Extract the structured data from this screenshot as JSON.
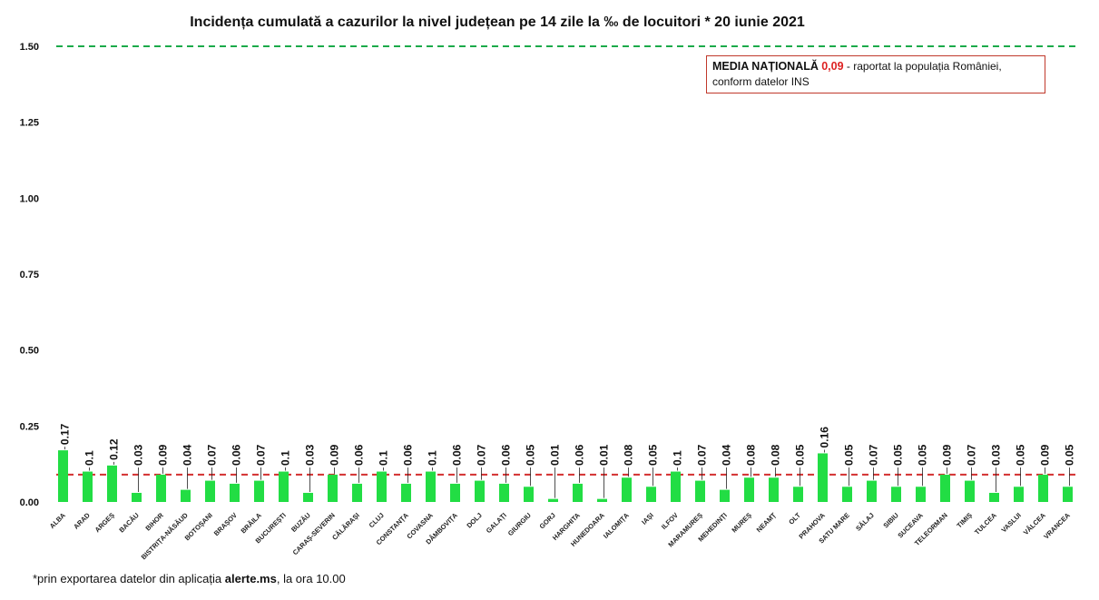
{
  "title": "Incidența cumulată a cazurilor la nivel județean pe 14 zile la ‰ de locuitori *  20 iunie 2021",
  "legend": {
    "label": "MEDIA NAȚIONALĂ",
    "value": "0,09",
    "text1": " - raportat la populația României,",
    "text2": "conform datelor INS"
  },
  "footnote": {
    "prefix": "*prin exportarea datelor din aplicația ",
    "bold": "alerte.ms",
    "suffix": ", la ora 10.00"
  },
  "colors": {
    "bar": "#22dd44",
    "national_line": "#d32f2f",
    "threshold_line": "#1aaa4a"
  },
  "chart_data": {
    "type": "bar",
    "title": "Incidența cumulată a cazurilor la nivel județean pe 14 zile la ‰ de locuitori *  20 iunie 2021",
    "ylim": [
      0,
      1.5
    ],
    "yticks": [
      "0.00",
      "0.25",
      "0.50",
      "0.75",
      "1.00",
      "1.25",
      "1.50"
    ],
    "grid": false,
    "reference_lines": [
      {
        "value": 1.5,
        "style": "dashed",
        "color": "#1aaa4a"
      },
      {
        "value": 0.09,
        "style": "dashed",
        "color": "#d32f2f"
      }
    ],
    "categories": [
      "ALBA",
      "ARAD",
      "ARGEȘ",
      "BACĂU",
      "BIHOR",
      "BISTRIȚA-NĂSĂUD",
      "BOTOȘANI",
      "BRAȘOV",
      "BRĂILA",
      "BUCUREȘTI",
      "BUZĂU",
      "CARAȘ-SEVERIN",
      "CĂLĂRAȘI",
      "CLUJ",
      "CONSTANȚA",
      "COVASNA",
      "DÂMBOVIȚA",
      "DOLJ",
      "GALAȚI",
      "GIURGIU",
      "GORJ",
      "HARGHITA",
      "HUNEDOARA",
      "IALOMIȚA",
      "IAȘI",
      "ILFOV",
      "MARAMUREȘ",
      "MEHEDINȚI",
      "MUREȘ",
      "NEAMȚ",
      "OLT",
      "PRAHOVA",
      "SATU MARE",
      "SĂLAJ",
      "SIBIU",
      "SUCEAVA",
      "TELEORMAN",
      "TIMIȘ",
      "TULCEA",
      "VASLUI",
      "VÂLCEA",
      "VRANCEA"
    ],
    "values": [
      0.17,
      0.1,
      0.12,
      0.03,
      0.09,
      0.04,
      0.07,
      0.06,
      0.07,
      0.1,
      0.03,
      0.09,
      0.06,
      0.1,
      0.06,
      0.1,
      0.06,
      0.07,
      0.06,
      0.05,
      0.01,
      0.06,
      0.01,
      0.08,
      0.05,
      0.1,
      0.07,
      0.04,
      0.08,
      0.08,
      0.05,
      0.16,
      0.05,
      0.07,
      0.05,
      0.05,
      0.09,
      0.07,
      0.03,
      0.05,
      0.09,
      0.05
    ],
    "labels": [
      "0.17",
      "0.1",
      "0.12",
      "0.03",
      "0.09",
      "0.04",
      "0.07",
      "0.06",
      "0.07",
      "0.1",
      "0.03",
      "0.09",
      "0.06",
      "0.1",
      "0.06",
      "0.1",
      "0.06",
      "0.07",
      "0.06",
      "0.05",
      "0.01",
      "0.06",
      "0.01",
      "0.08",
      "0.05",
      "0.1",
      "0.07",
      "0.04",
      "0.08",
      "0.08",
      "0.05",
      "0.16",
      "0.05",
      "0.07",
      "0.05",
      "0.05",
      "0.09",
      "0.07",
      "0.03",
      "0.05",
      "0.09",
      "0.05"
    ]
  }
}
